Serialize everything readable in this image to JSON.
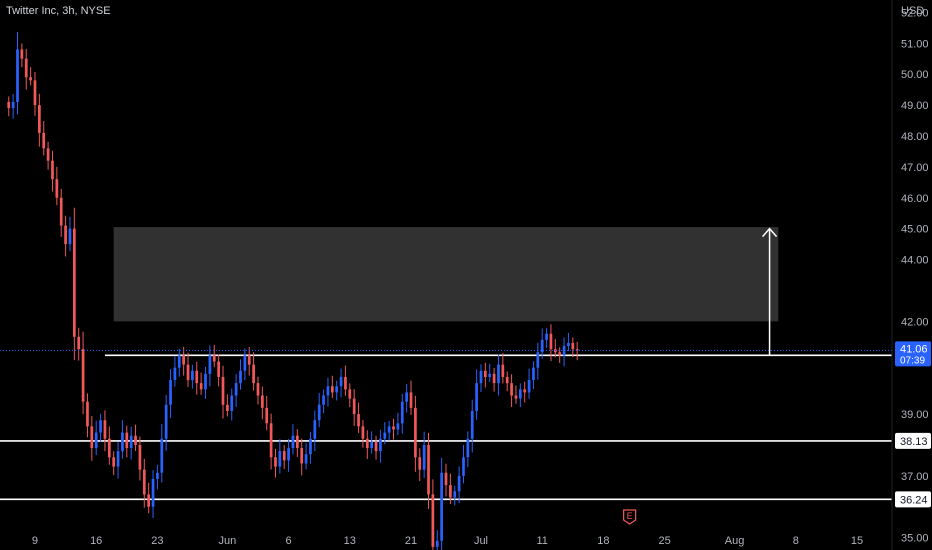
{
  "header": {
    "title": "Twitter Inc, 3h, NYSE"
  },
  "colors": {
    "up": "#2962ff",
    "down": "#f0585a",
    "background": "#000000",
    "axis_text": "#b2b5be",
    "last_price_badge": "#2962ff",
    "zone_fill": "#3a3a3a"
  },
  "chart_data": {
    "type": "candlestick",
    "currency_label": "USD",
    "ylim": [
      34.6,
      52.4
    ],
    "y_ticks": [
      "52.00",
      "51.00",
      "50.00",
      "49.00",
      "48.00",
      "47.00",
      "46.00",
      "45.00",
      "44.00",
      "42.00",
      "39.00",
      "37.00",
      "35.00"
    ],
    "x_ticks": [
      "9",
      "16",
      "23",
      "Jun",
      "6",
      "13",
      "21",
      "Jul",
      "11",
      "18",
      "25",
      "Aug",
      "8",
      "15"
    ],
    "x_tick_positions": [
      0,
      7,
      14,
      22,
      29,
      36,
      43,
      51,
      58,
      65,
      72,
      80,
      87,
      94
    ],
    "x_range": [
      -4,
      98
    ],
    "bars_start_index": -3,
    "bars_step": 0.5,
    "closes": [
      48.9,
      49.1,
      50.8,
      50.5,
      49.9,
      49.8,
      49.0,
      48.1,
      47.6,
      47.2,
      46.6,
      46.0,
      45.1,
      44.5,
      45.0,
      41.5,
      41.1,
      39.4,
      38.6,
      37.9,
      38.4,
      38.8,
      38.2,
      37.6,
      37.3,
      37.8,
      38.4,
      37.9,
      38.3,
      38.0,
      37.2,
      36.4,
      36.0,
      36.9,
      37.1,
      38.2,
      39.3,
      40.1,
      40.5,
      40.9,
      40.6,
      40.1,
      40.4,
      40.0,
      39.8,
      40.3,
      40.9,
      40.7,
      40.2,
      39.3,
      39.1,
      39.6,
      40.0,
      40.4,
      40.9,
      40.6,
      40.0,
      39.6,
      39.2,
      38.7,
      37.6,
      37.3,
      37.8,
      37.5,
      37.9,
      38.3,
      37.9,
      37.4,
      37.7,
      38.2,
      38.8,
      39.3,
      39.6,
      39.9,
      39.7,
      39.9,
      40.2,
      39.8,
      39.5,
      39.0,
      38.6,
      38.2,
      37.9,
      38.1,
      37.8,
      38.2,
      38.4,
      38.6,
      38.5,
      38.7,
      39.4,
      39.7,
      39.2,
      37.6,
      37.2,
      38.0,
      36.4,
      34.7,
      34.9,
      37.1,
      36.7,
      36.3,
      36.5,
      37.0,
      37.6,
      38.2,
      39.1,
      40.0,
      40.4,
      40.2,
      40.3,
      40.0,
      40.6,
      40.2,
      40.0,
      39.6,
      39.5,
      39.8,
      39.7,
      40.1,
      40.5,
      41.0,
      41.4,
      41.6,
      41.1,
      41.0,
      40.9,
      41.2,
      41.3,
      41.1,
      41.06
    ],
    "horizontal_levels": [
      {
        "label": "40.90",
        "value": 40.9
      },
      {
        "label": "38.13",
        "value": 38.13
      },
      {
        "label": "36.24",
        "value": 36.24
      }
    ],
    "target_zone": {
      "low": 42.0,
      "high": 45.05
    },
    "projection_arrow": {
      "from": 40.9,
      "to": 45.0
    },
    "last_price": {
      "price": "41.06",
      "countdown": "07:39",
      "value": 41.06
    },
    "event_marker": {
      "label": "E"
    }
  }
}
